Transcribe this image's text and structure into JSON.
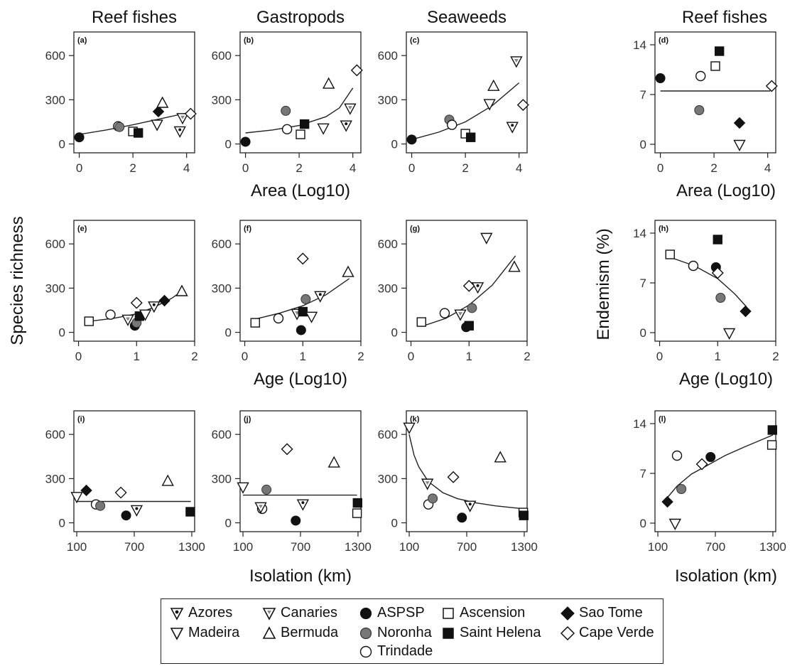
{
  "column_titles": [
    "Reef fishes",
    "Gastropods",
    "Seaweeds",
    "Reef fishes"
  ],
  "ylabels": {
    "richness": "Species richness",
    "endemism": "Endemism (%)"
  },
  "islands": [
    {
      "id": "azores",
      "label": "Azores",
      "marker": "tri-down-dot",
      "color": "#ffffff"
    },
    {
      "id": "canaries",
      "label": "Canaries",
      "marker": "tri-down-grey",
      "color": "#ffffff"
    },
    {
      "id": "aspsp",
      "label": "ASPSP",
      "marker": "circle",
      "color": "#111111"
    },
    {
      "id": "ascension",
      "label": "Ascension",
      "marker": "square",
      "color": "#ffffff"
    },
    {
      "id": "saotome",
      "label": "Sao Tome",
      "marker": "diamond",
      "color": "#111111"
    },
    {
      "id": "madeira",
      "label": "Madeira",
      "marker": "tri-down",
      "color": "#ffffff"
    },
    {
      "id": "bermuda",
      "label": "Bermuda",
      "marker": "tri-up",
      "color": "#ffffff"
    },
    {
      "id": "noronha",
      "label": "Noronha",
      "marker": "circle",
      "color": "#777777"
    },
    {
      "id": "sthelena",
      "label": "Saint Helena",
      "marker": "square",
      "color": "#111111"
    },
    {
      "id": "capeverde",
      "label": "Cape Verde",
      "marker": "diamond",
      "color": "#ffffff"
    },
    {
      "id": "trindade",
      "label": "Trindade",
      "marker": "circle",
      "color": "#ffffff"
    }
  ],
  "chart_data": [
    {
      "panel": "(a)",
      "type": "scatter",
      "xlabel": "",
      "ylabel": "",
      "xlim": [
        -0.2,
        4.3
      ],
      "ylim": [
        -60,
        760
      ],
      "xticks": [
        0,
        2,
        4
      ],
      "yticks": [
        0,
        300,
        600
      ],
      "points": [
        {
          "island": "aspsp",
          "x": 0,
          "y": 45
        },
        {
          "island": "trindade",
          "x": 1.45,
          "y": 120
        },
        {
          "island": "noronha",
          "x": 1.5,
          "y": 115
        },
        {
          "island": "ascension",
          "x": 2.0,
          "y": 85
        },
        {
          "island": "sthelena",
          "x": 2.2,
          "y": 75
        },
        {
          "island": "saotome",
          "x": 2.95,
          "y": 220
        },
        {
          "island": "madeira",
          "x": 2.9,
          "y": 130
        },
        {
          "island": "bermuda",
          "x": 3.1,
          "y": 280
        },
        {
          "island": "azores",
          "x": 3.75,
          "y": 85
        },
        {
          "island": "canaries",
          "x": 3.85,
          "y": 175
        },
        {
          "island": "capeverde",
          "x": 4.15,
          "y": 205
        }
      ],
      "trend": [
        [
          0,
          65
        ],
        [
          1,
          95
        ],
        [
          2,
          130
        ],
        [
          3,
          170
        ],
        [
          4,
          210
        ]
      ]
    },
    {
      "panel": "(b)",
      "type": "scatter",
      "xlabel": "",
      "ylabel": "",
      "xlim": [
        -0.2,
        4.3
      ],
      "ylim": [
        -60,
        760
      ],
      "xticks": [
        0,
        2,
        4
      ],
      "yticks": [
        0,
        300,
        600
      ],
      "points": [
        {
          "island": "aspsp",
          "x": 0,
          "y": 15
        },
        {
          "island": "noronha",
          "x": 1.5,
          "y": 225
        },
        {
          "island": "trindade",
          "x": 1.55,
          "y": 100
        },
        {
          "island": "ascension",
          "x": 2.05,
          "y": 65
        },
        {
          "island": "sthelena",
          "x": 2.2,
          "y": 135
        },
        {
          "island": "madeira",
          "x": 2.9,
          "y": 105
        },
        {
          "island": "bermuda",
          "x": 3.1,
          "y": 410
        },
        {
          "island": "azores",
          "x": 3.75,
          "y": 125
        },
        {
          "island": "canaries",
          "x": 3.9,
          "y": 240
        },
        {
          "island": "capeverde",
          "x": 4.15,
          "y": 500
        }
      ],
      "trend": [
        [
          0,
          75
        ],
        [
          1,
          95
        ],
        [
          2,
          125
        ],
        [
          3,
          185
        ],
        [
          3.5,
          245
        ],
        [
          4,
          380
        ]
      ]
    },
    {
      "panel": "(c)",
      "type": "scatter",
      "xlabel": "",
      "ylabel": "",
      "xlim": [
        -0.2,
        4.3
      ],
      "ylim": [
        -60,
        760
      ],
      "xticks": [
        0,
        2,
        4
      ],
      "yticks": [
        0,
        300,
        600
      ],
      "points": [
        {
          "island": "aspsp",
          "x": 0,
          "y": 30
        },
        {
          "island": "noronha",
          "x": 1.4,
          "y": 165
        },
        {
          "island": "trindade",
          "x": 1.5,
          "y": 130
        },
        {
          "island": "ascension",
          "x": 2.0,
          "y": 70
        },
        {
          "island": "sthelena",
          "x": 2.2,
          "y": 45
        },
        {
          "island": "madeira",
          "x": 2.9,
          "y": 270
        },
        {
          "island": "bermuda",
          "x": 3.05,
          "y": 395
        },
        {
          "island": "azores",
          "x": 3.75,
          "y": 115
        },
        {
          "island": "canaries",
          "x": 3.9,
          "y": 560
        },
        {
          "island": "capeverde",
          "x": 4.15,
          "y": 265
        }
      ],
      "trend": [
        [
          0,
          30
        ],
        [
          1,
          80
        ],
        [
          2,
          150
        ],
        [
          3,
          260
        ],
        [
          4,
          415
        ]
      ]
    },
    {
      "panel": "(d)",
      "type": "scatter",
      "xlabel": "Area (Log10)",
      "ylabel": "",
      "xlim": [
        -0.2,
        4.3
      ],
      "ylim": [
        -1.2,
        15.8
      ],
      "xticks": [
        0,
        2,
        4
      ],
      "yticks": [
        0,
        7,
        14
      ],
      "points": [
        {
          "island": "aspsp",
          "x": 0,
          "y": 9.3
        },
        {
          "island": "trindade",
          "x": 1.5,
          "y": 9.6
        },
        {
          "island": "noronha",
          "x": 1.45,
          "y": 4.8
        },
        {
          "island": "ascension",
          "x": 2.05,
          "y": 11
        },
        {
          "island": "sthelena",
          "x": 2.2,
          "y": 13.1
        },
        {
          "island": "saotome",
          "x": 2.95,
          "y": 3
        },
        {
          "island": "madeira",
          "x": 2.95,
          "y": -0.1
        },
        {
          "island": "capeverde",
          "x": 4.15,
          "y": 8.2
        }
      ],
      "trend": [
        [
          0,
          7.5
        ],
        [
          4.1,
          7.5
        ]
      ]
    },
    {
      "panel": "(e)",
      "type": "scatter",
      "xlabel": "",
      "ylabel": "",
      "xlim": [
        -0.08,
        2.0
      ],
      "ylim": [
        -60,
        760
      ],
      "xticks": [
        0,
        1,
        2
      ],
      "yticks": [
        0,
        300,
        600
      ],
      "points": [
        {
          "island": "ascension",
          "x": 0.18,
          "y": 75
        },
        {
          "island": "trindade",
          "x": 0.55,
          "y": 120
        },
        {
          "island": "canaries",
          "x": 0.85,
          "y": 85
        },
        {
          "island": "aspsp",
          "x": 0.97,
          "y": 45
        },
        {
          "island": "noronha",
          "x": 1.0,
          "y": 65
        },
        {
          "island": "capeverde",
          "x": 1.0,
          "y": 200
        },
        {
          "island": "sthelena",
          "x": 1.05,
          "y": 110
        },
        {
          "island": "madeira",
          "x": 1.15,
          "y": 120
        },
        {
          "island": "azores",
          "x": 1.3,
          "y": 175
        },
        {
          "island": "saotome",
          "x": 1.48,
          "y": 215
        },
        {
          "island": "bermuda",
          "x": 1.78,
          "y": 280
        }
      ],
      "trend": [
        [
          0.18,
          75
        ],
        [
          0.6,
          95
        ],
        [
          1.0,
          125
        ],
        [
          1.3,
          170
        ],
        [
          1.6,
          230
        ],
        [
          1.8,
          285
        ]
      ]
    },
    {
      "panel": "(f)",
      "type": "scatter",
      "xlabel": "",
      "ylabel": "",
      "xlim": [
        -0.08,
        2.0
      ],
      "ylim": [
        -60,
        760
      ],
      "xticks": [
        0,
        1,
        2
      ],
      "yticks": [
        0,
        300,
        600
      ],
      "points": [
        {
          "island": "ascension",
          "x": 0.18,
          "y": 65
        },
        {
          "island": "trindade",
          "x": 0.58,
          "y": 95
        },
        {
          "island": "canaries",
          "x": 0.9,
          "y": 125
        },
        {
          "island": "aspsp",
          "x": 0.97,
          "y": 15
        },
        {
          "island": "sthelena",
          "x": 1.0,
          "y": 140
        },
        {
          "island": "capeverde",
          "x": 1.0,
          "y": 500
        },
        {
          "island": "noronha",
          "x": 1.05,
          "y": 225
        },
        {
          "island": "madeira",
          "x": 1.15,
          "y": 105
        },
        {
          "island": "azores",
          "x": 1.3,
          "y": 245
        },
        {
          "island": "bermuda",
          "x": 1.78,
          "y": 410
        }
      ],
      "trend": [
        [
          0.18,
          90
        ],
        [
          0.6,
          130
        ],
        [
          1.0,
          180
        ],
        [
          1.4,
          255
        ],
        [
          1.8,
          365
        ]
      ]
    },
    {
      "panel": "(g)",
      "type": "scatter",
      "xlabel": "",
      "ylabel": "",
      "xlim": [
        -0.08,
        2.0
      ],
      "ylim": [
        -60,
        760
      ],
      "xticks": [
        0,
        1,
        2
      ],
      "yticks": [
        0,
        300,
        600
      ],
      "points": [
        {
          "island": "ascension",
          "x": 0.18,
          "y": 70
        },
        {
          "island": "trindade",
          "x": 0.58,
          "y": 130
        },
        {
          "island": "canaries",
          "x": 0.85,
          "y": 120
        },
        {
          "island": "aspsp",
          "x": 0.95,
          "y": 35
        },
        {
          "island": "sthelena",
          "x": 1.0,
          "y": 45
        },
        {
          "island": "capeverde",
          "x": 1.0,
          "y": 315
        },
        {
          "island": "noronha",
          "x": 1.05,
          "y": 165
        },
        {
          "island": "azores",
          "x": 1.15,
          "y": 305
        },
        {
          "island": "madeira",
          "x": 1.3,
          "y": 640
        },
        {
          "island": "bermuda",
          "x": 1.78,
          "y": 445
        }
      ],
      "trend": [
        [
          0.18,
          40
        ],
        [
          0.6,
          95
        ],
        [
          1.0,
          185
        ],
        [
          1.4,
          320
        ],
        [
          1.8,
          520
        ]
      ]
    },
    {
      "panel": "(h)",
      "type": "scatter",
      "xlabel": "Age (Log10)",
      "ylabel": "",
      "xlim": [
        -0.08,
        2.0
      ],
      "ylim": [
        -1.2,
        15.8
      ],
      "xticks": [
        0,
        1,
        2
      ],
      "yticks": [
        0,
        7,
        14
      ],
      "points": [
        {
          "island": "ascension",
          "x": 0.18,
          "y": 11
        },
        {
          "island": "trindade",
          "x": 0.58,
          "y": 9.4
        },
        {
          "island": "aspsp",
          "x": 0.97,
          "y": 9.2
        },
        {
          "island": "capeverde",
          "x": 1.0,
          "y": 8.4
        },
        {
          "island": "sthelena",
          "x": 1.0,
          "y": 13.1
        },
        {
          "island": "noronha",
          "x": 1.05,
          "y": 4.9
        },
        {
          "island": "madeira",
          "x": 1.2,
          "y": -0.1
        },
        {
          "island": "saotome",
          "x": 1.48,
          "y": 3
        }
      ],
      "trend": [
        [
          0.18,
          10.6
        ],
        [
          0.6,
          9.4
        ],
        [
          1.0,
          7.6
        ],
        [
          1.3,
          5.4
        ],
        [
          1.5,
          3.6
        ]
      ]
    },
    {
      "panel": "(i)",
      "type": "scatter",
      "xlabel": "",
      "ylabel": "",
      "xlim": [
        70,
        1330
      ],
      "ylim": [
        -60,
        760
      ],
      "xticks": [
        100,
        700,
        1300
      ],
      "yticks": [
        0,
        300,
        600
      ],
      "points": [
        {
          "island": "madeira",
          "x": 100,
          "y": 175
        },
        {
          "island": "saotome",
          "x": 200,
          "y": 220
        },
        {
          "island": "trindade",
          "x": 300,
          "y": 125
        },
        {
          "island": "noronha",
          "x": 345,
          "y": 115
        },
        {
          "island": "capeverde",
          "x": 560,
          "y": 205
        },
        {
          "island": "aspsp",
          "x": 615,
          "y": 50
        },
        {
          "island": "azores",
          "x": 725,
          "y": 85
        },
        {
          "island": "bermuda",
          "x": 1050,
          "y": 285
        },
        {
          "island": "sthelena",
          "x": 1285,
          "y": 75
        }
      ],
      "trend": [
        [
          100,
          145
        ],
        [
          1290,
          145
        ]
      ]
    },
    {
      "panel": "(j)",
      "type": "scatter",
      "xlabel": "",
      "ylabel": "",
      "xlim": [
        70,
        1330
      ],
      "ylim": [
        -60,
        760
      ],
      "xticks": [
        100,
        700,
        1300
      ],
      "yticks": [
        0,
        300,
        600
      ],
      "points": [
        {
          "island": "madeira",
          "x": 100,
          "y": 240
        },
        {
          "island": "trindade",
          "x": 300,
          "y": 95
        },
        {
          "island": "canaries",
          "x": 285,
          "y": 105
        },
        {
          "island": "noronha",
          "x": 345,
          "y": 225
        },
        {
          "island": "capeverde",
          "x": 560,
          "y": 500
        },
        {
          "island": "aspsp",
          "x": 650,
          "y": 15
        },
        {
          "island": "azores",
          "x": 725,
          "y": 125
        },
        {
          "island": "bermuda",
          "x": 1050,
          "y": 410
        },
        {
          "island": "sthelena",
          "x": 1295,
          "y": 135
        },
        {
          "island": "ascension",
          "x": 1290,
          "y": 65
        }
      ],
      "trend": [
        [
          100,
          188
        ],
        [
          1290,
          188
        ]
      ]
    },
    {
      "panel": "(k)",
      "type": "scatter",
      "xlabel": "Isolation (km)",
      "ylabel": "",
      "xlim": [
        70,
        1330
      ],
      "ylim": [
        -60,
        760
      ],
      "xticks": [
        100,
        700,
        1300
      ],
      "yticks": [
        0,
        300,
        600
      ],
      "points": [
        {
          "island": "madeira",
          "x": 100,
          "y": 645
        },
        {
          "island": "canaries",
          "x": 290,
          "y": 265
        },
        {
          "island": "trindade",
          "x": 300,
          "y": 125
        },
        {
          "island": "noronha",
          "x": 345,
          "y": 165
        },
        {
          "island": "capeverde",
          "x": 560,
          "y": 310
        },
        {
          "island": "aspsp",
          "x": 650,
          "y": 35
        },
        {
          "island": "azores",
          "x": 735,
          "y": 115
        },
        {
          "island": "bermuda",
          "x": 1050,
          "y": 445
        },
        {
          "island": "ascension",
          "x": 1290,
          "y": 70
        },
        {
          "island": "sthelena",
          "x": 1295,
          "y": 50
        }
      ],
      "trend": [
        [
          100,
          600
        ],
        [
          150,
          460
        ],
        [
          200,
          380
        ],
        [
          300,
          280
        ],
        [
          450,
          205
        ],
        [
          600,
          165
        ],
        [
          800,
          135
        ],
        [
          1000,
          115
        ],
        [
          1300,
          95
        ]
      ]
    },
    {
      "panel": "(l)",
      "type": "scatter",
      "xlabel": "Isolation (km)",
      "ylabel": "",
      "xlim": [
        70,
        1330
      ],
      "ylim": [
        -1.2,
        15.8
      ],
      "xticks": [
        100,
        700,
        1300
      ],
      "yticks": [
        0,
        7,
        14
      ],
      "points": [
        {
          "island": "saotome",
          "x": 200,
          "y": 3
        },
        {
          "island": "madeira",
          "x": 280,
          "y": -0.1
        },
        {
          "island": "trindade",
          "x": 300,
          "y": 9.5
        },
        {
          "island": "noronha",
          "x": 345,
          "y": 4.8
        },
        {
          "island": "capeverde",
          "x": 560,
          "y": 8.3
        },
        {
          "island": "aspsp",
          "x": 650,
          "y": 9.3
        },
        {
          "island": "ascension",
          "x": 1290,
          "y": 11
        },
        {
          "island": "sthelena",
          "x": 1295,
          "y": 13.1
        }
      ],
      "trend": [
        [
          200,
          3.6
        ],
        [
          300,
          5.2
        ],
        [
          450,
          6.9
        ],
        [
          600,
          8.0
        ],
        [
          800,
          9.5
        ],
        [
          1000,
          10.7
        ],
        [
          1300,
          12.4
        ]
      ]
    }
  ],
  "shared_xlabels": {
    "row1": "Area (Log10)",
    "row2": "Age (Log10)",
    "row3": "Isolation (km)"
  }
}
